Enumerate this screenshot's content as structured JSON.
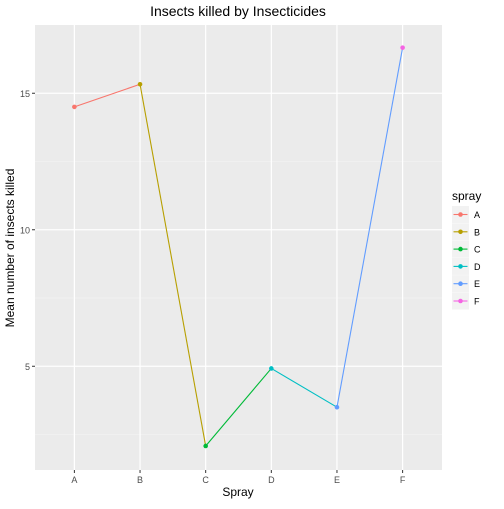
{
  "chart_data": {
    "type": "line",
    "title": "Insects killed by Insecticides",
    "xlabel": "Spray",
    "ylabel": "Mean number of insects killed",
    "categories": [
      "A",
      "B",
      "C",
      "D",
      "E",
      "F"
    ],
    "values": [
      14.5,
      15.33,
      2.08,
      4.92,
      3.5,
      16.67
    ],
    "yticks": [
      5,
      10,
      15
    ],
    "ylim": [
      1.2,
      17.5
    ],
    "grid": true,
    "legend": {
      "title": "spray",
      "placement": "right",
      "entries": [
        "A",
        "B",
        "C",
        "D",
        "E",
        "F"
      ]
    },
    "colors": {
      "A": "#F8766D",
      "B": "#B79F00",
      "C": "#00BA38",
      "D": "#00BFC4",
      "E": "#619CFF",
      "F": "#F564E3"
    },
    "panel_background": "#EBEBEB"
  }
}
